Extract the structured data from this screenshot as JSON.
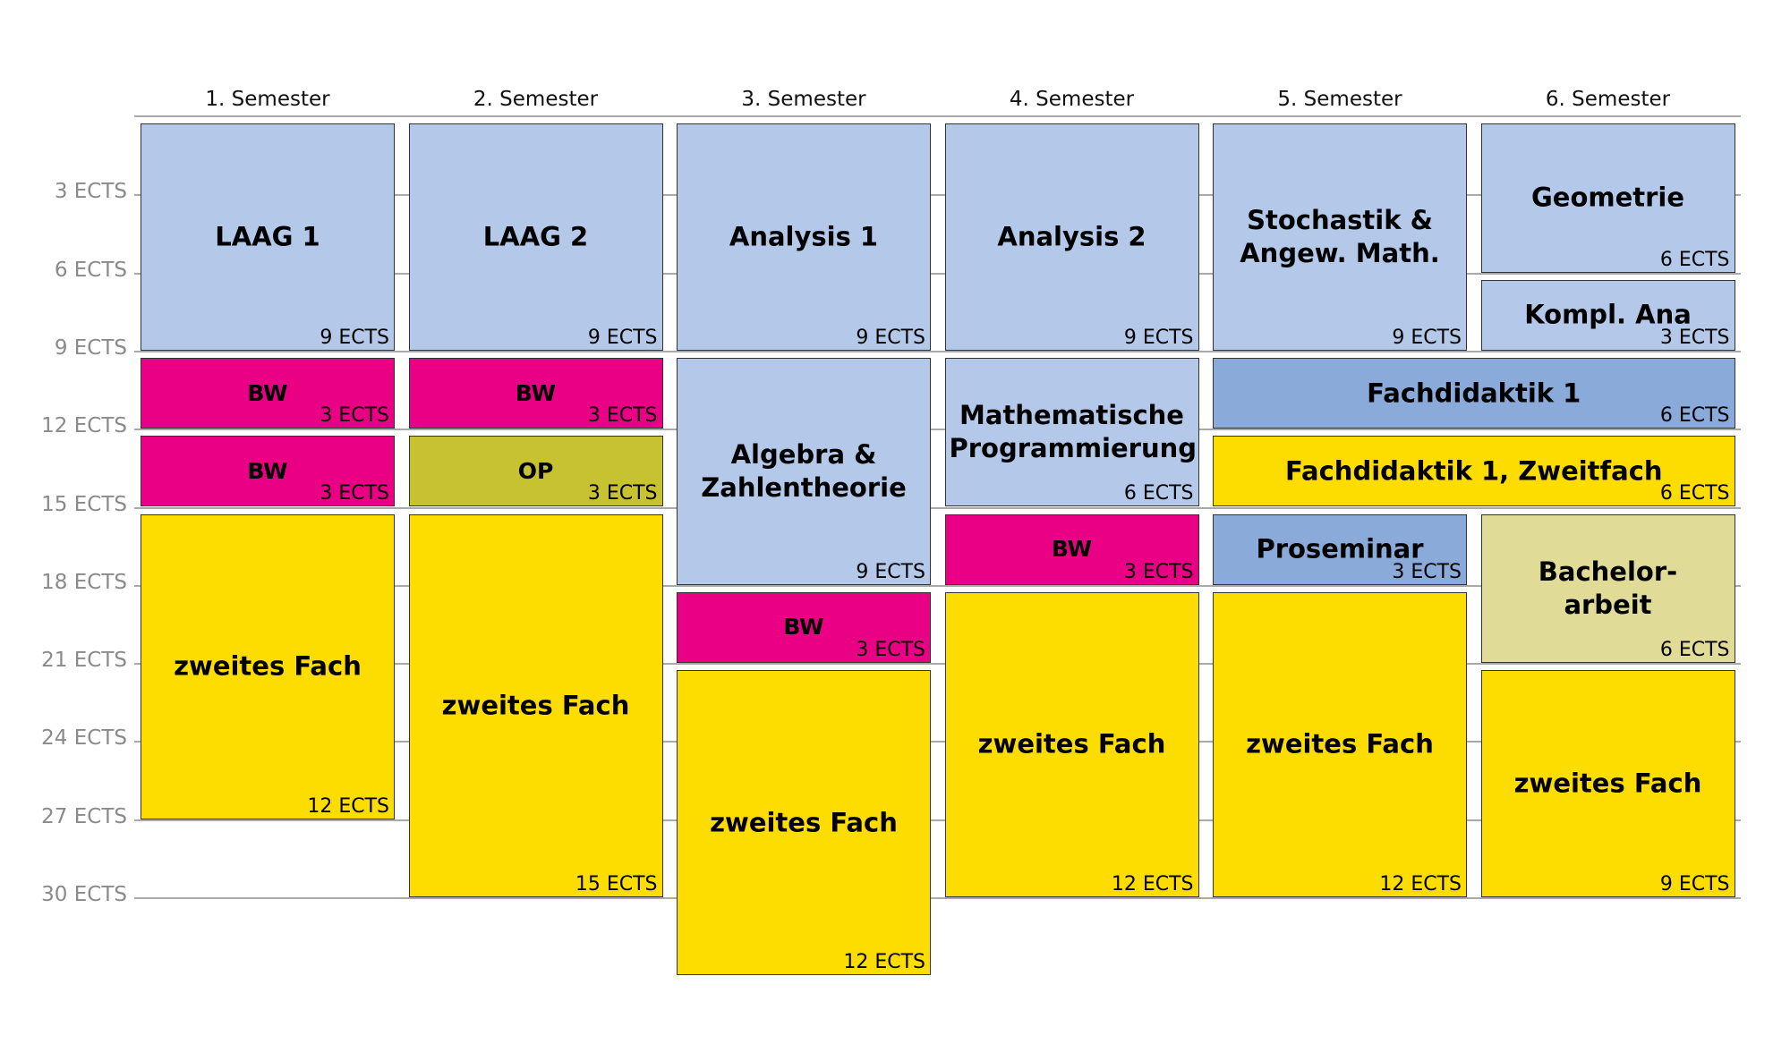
{
  "semesters": [
    "1. Semester",
    "2. Semester",
    "3. Semester",
    "4. Semester",
    "5. Semester",
    "6. Semester"
  ],
  "y_axis_labels": [
    "3 ECTS",
    "6 ECTS",
    "9 ECTS",
    "12 ECTS",
    "15 ECTS",
    "18 ECTS",
    "21 ECTS",
    "24 ECTS",
    "27 ECTS",
    "30 ECTS"
  ],
  "colors": {
    "math_core": "#b4c9e9",
    "didactics": "#8aaad9",
    "education_studies": "#ea0085",
    "second_subject": "#fddd00",
    "op": "#c7c231",
    "thesis": "#e0db96"
  },
  "modules": [
    {
      "semester": 1,
      "start": 0,
      "ects": 9,
      "title": "LAAG 1",
      "ects_label": "9 ECTS",
      "color": "#b4c9e9"
    },
    {
      "semester": 1,
      "start": 9,
      "ects": 3,
      "title": "BW",
      "ects_label": "3 ECTS",
      "color": "#ea0085"
    },
    {
      "semester": 1,
      "start": 12,
      "ects": 3,
      "title": "BW",
      "ects_label": "3 ECTS",
      "color": "#ea0085"
    },
    {
      "semester": 1,
      "start": 15,
      "ects": 12,
      "title": "zweites Fach",
      "ects_label": "12 ECTS",
      "color": "#fddd00"
    },
    {
      "semester": 2,
      "start": 0,
      "ects": 9,
      "title": "LAAG 2",
      "ects_label": "9 ECTS",
      "color": "#b4c9e9"
    },
    {
      "semester": 2,
      "start": 9,
      "ects": 3,
      "title": "BW",
      "ects_label": "3 ECTS",
      "color": "#ea0085"
    },
    {
      "semester": 2,
      "start": 12,
      "ects": 3,
      "title": "OP",
      "ects_label": "3 ECTS",
      "color": "#c7c231"
    },
    {
      "semester": 2,
      "start": 15,
      "ects": 15,
      "title": "zweites Fach",
      "ects_label": "15 ECTS",
      "color": "#fddd00"
    },
    {
      "semester": 3,
      "start": 0,
      "ects": 9,
      "title": "Analysis 1",
      "ects_label": "9 ECTS",
      "color": "#b4c9e9"
    },
    {
      "semester": 3,
      "start": 9,
      "ects": 9,
      "title": "Algebra &\nZahlentheorie",
      "ects_label": "9 ECTS",
      "color": "#b4c9e9"
    },
    {
      "semester": 3,
      "start": 18,
      "ects": 3,
      "title": "BW",
      "ects_label": "3 ECTS",
      "color": "#ea0085"
    },
    {
      "semester": 3,
      "start": 21,
      "ects": 12,
      "title": "zweites Fach",
      "ects_label": "12 ECTS",
      "color": "#fddd00"
    },
    {
      "semester": 4,
      "start": 0,
      "ects": 9,
      "title": "Analysis 2",
      "ects_label": "9 ECTS",
      "color": "#b4c9e9"
    },
    {
      "semester": 4,
      "start": 9,
      "ects": 6,
      "title": "Mathematische\nProgrammierung",
      "ects_label": "6 ECTS",
      "color": "#b4c9e9"
    },
    {
      "semester": 4,
      "start": 15,
      "ects": 3,
      "title": "BW",
      "ects_label": "3 ECTS",
      "color": "#ea0085"
    },
    {
      "semester": 4,
      "start": 18,
      "ects": 12,
      "title": "zweites Fach",
      "ects_label": "12 ECTS",
      "color": "#fddd00"
    },
    {
      "semester": 5,
      "start": 0,
      "ects": 9,
      "title": "Stochastik &\nAngew. Math.",
      "ects_label": "9 ECTS",
      "color": "#b4c9e9"
    },
    {
      "semester": 5,
      "start": 9,
      "ects": 3,
      "span": 2,
      "title": "Fachdidaktik 1",
      "ects_label": "6 ECTS",
      "color": "#8aaad9"
    },
    {
      "semester": 5,
      "start": 12,
      "ects": 3,
      "span": 2,
      "title": "Fachdidaktik 1, Zweitfach",
      "ects_label": "6 ECTS",
      "color": "#fddd00"
    },
    {
      "semester": 5,
      "start": 15,
      "ects": 3,
      "title": "Proseminar",
      "ects_label": "3 ECTS",
      "color": "#8aaad9"
    },
    {
      "semester": 5,
      "start": 18,
      "ects": 12,
      "title": "zweites Fach",
      "ects_label": "12 ECTS",
      "color": "#fddd00"
    },
    {
      "semester": 6,
      "start": 0,
      "ects": 6,
      "title": "Geometrie",
      "ects_label": "6 ECTS",
      "color": "#b4c9e9"
    },
    {
      "semester": 6,
      "start": 6,
      "ects": 3,
      "title": "Kompl. Ana",
      "ects_label": "3 ECTS",
      "color": "#b4c9e9"
    },
    {
      "semester": 6,
      "start": 15,
      "ects": 6,
      "title": "Bachelor-\narbeit",
      "ects_label": "6 ECTS",
      "color": "#e0db96"
    },
    {
      "semester": 6,
      "start": 21,
      "ects": 9,
      "title": "zweites Fach",
      "ects_label": "9 ECTS",
      "color": "#fddd00"
    }
  ]
}
